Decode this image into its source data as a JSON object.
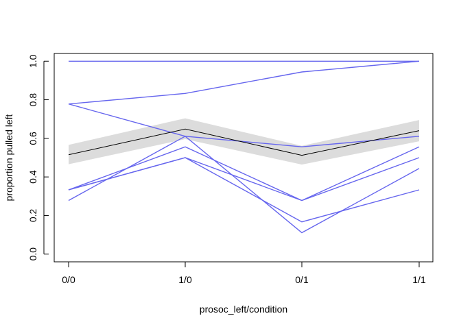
{
  "chart_data": {
    "type": "line",
    "title": "",
    "xlabel": "prosoc_left/condition",
    "ylabel": "proportion pulled left",
    "categories": [
      "0/0",
      "1/0",
      "0/1",
      "1/1"
    ],
    "yticks": [
      "0.0",
      "0.2",
      "0.4",
      "0.6",
      "0.8",
      "1.0"
    ],
    "ylim": [
      -0.04,
      1.04
    ],
    "grid": false,
    "legend": "none",
    "colors": {
      "series": "#6666ee",
      "mean": "#000000",
      "band": "#dcdcdc",
      "frame": "#000000"
    },
    "series": [
      {
        "values": [
          1.0,
          1.0,
          1.0,
          1.0
        ]
      },
      {
        "values": [
          0.778,
          0.833,
          0.944,
          1.0
        ]
      },
      {
        "values": [
          0.778,
          0.611,
          0.556,
          0.611
        ]
      },
      {
        "values": [
          0.333,
          0.5,
          0.278,
          0.556
        ]
      },
      {
        "values": [
          0.333,
          0.5,
          0.167,
          0.333
        ]
      },
      {
        "values": [
          0.278,
          0.611,
          0.111,
          0.444
        ]
      },
      {
        "values": [
          0.333,
          0.556,
          0.278,
          0.5
        ]
      }
    ],
    "mean": {
      "values": [
        0.515,
        0.648,
        0.512,
        0.64
      ],
      "lower": [
        0.466,
        0.596,
        0.464,
        0.585
      ],
      "upper": [
        0.566,
        0.704,
        0.561,
        0.695
      ]
    }
  }
}
